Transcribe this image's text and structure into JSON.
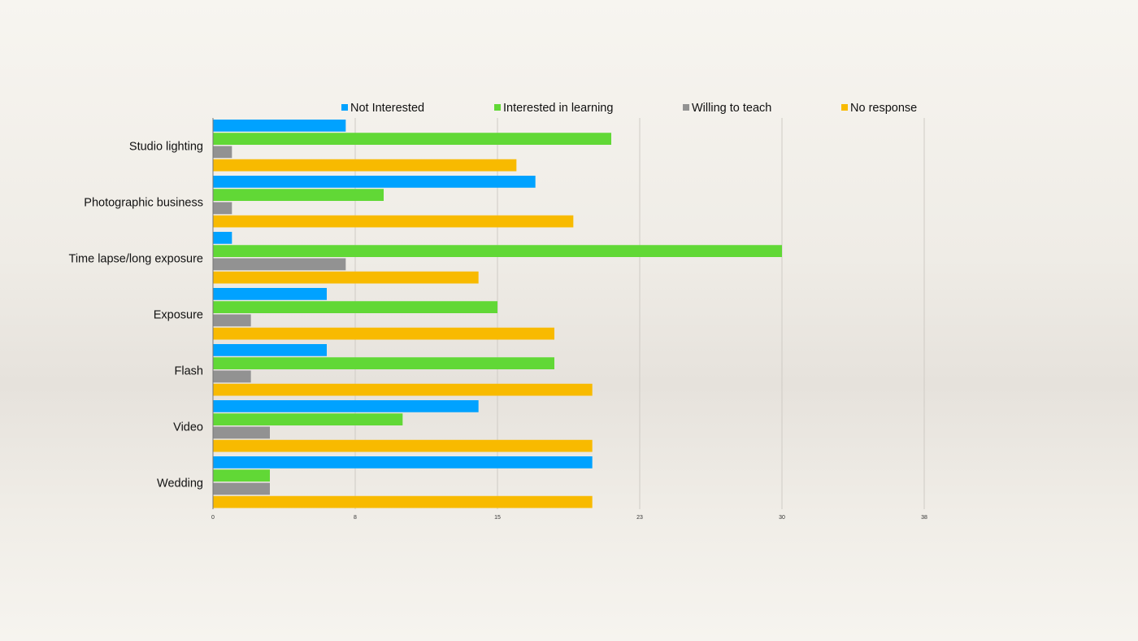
{
  "chart_data": {
    "type": "bar",
    "orientation": "horizontal",
    "title": "",
    "xlabel": "",
    "ylabel": "",
    "categories": [
      "Studio lighting",
      "Photographic business",
      "Time lapse/long exposure",
      "Exposure",
      "Flash",
      "Video",
      "Wedding"
    ],
    "series": [
      {
        "name": "Not Interested",
        "color": "#00a2ff",
        "values": [
          7,
          17,
          1,
          6,
          6,
          14,
          20
        ]
      },
      {
        "name": "Interested in learning",
        "color": "#61d836",
        "values": [
          21,
          9,
          30,
          15,
          18,
          10,
          3
        ]
      },
      {
        "name": "Willing to teach",
        "color": "#929292",
        "values": [
          1,
          1,
          7,
          2,
          2,
          3,
          3
        ]
      },
      {
        "name": "No response",
        "color": "#f8ba00",
        "values": [
          16,
          19,
          14,
          18,
          20,
          20,
          20
        ]
      }
    ],
    "xlim": [
      0,
      37.5
    ],
    "x_ticks": [
      0,
      7.5,
      15,
      22.5,
      30,
      37.5
    ],
    "x_tick_labels": [
      "0",
      "8",
      "15",
      "23",
      "30",
      "38"
    ],
    "grid": true,
    "legend_position": "top"
  }
}
